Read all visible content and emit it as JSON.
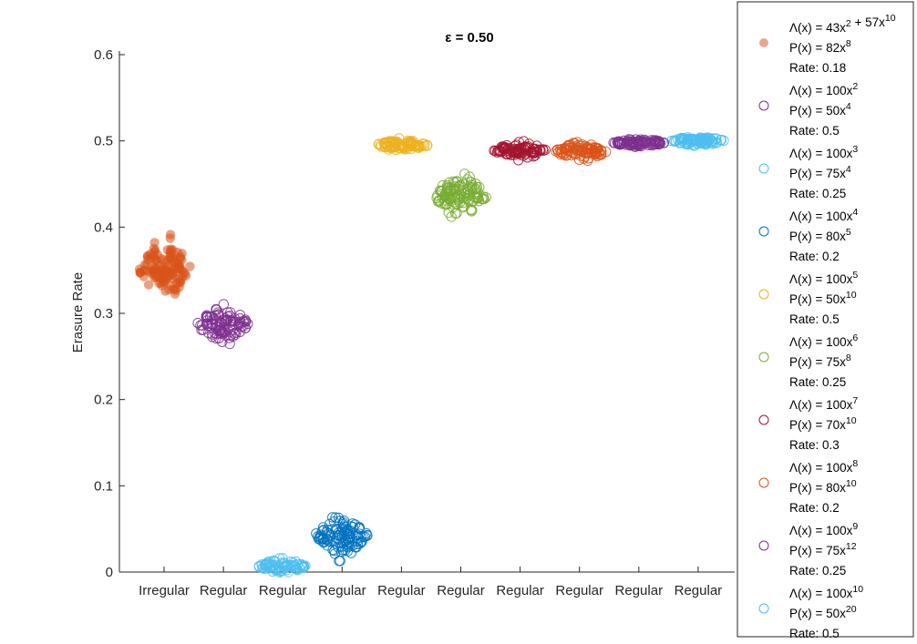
{
  "chart_data": {
    "type": "scatter",
    "title": "ε = 0.50",
    "xlabel": "",
    "ylabel": "Erasure Rate",
    "ylim": [
      0,
      0.6
    ],
    "yticks": [
      0,
      0.1,
      0.2,
      0.3,
      0.4,
      0.5,
      0.6
    ],
    "categories": [
      "Irregular",
      "Regular",
      "Regular",
      "Regular",
      "Regular",
      "Regular",
      "Regular",
      "Regular",
      "Regular",
      "Regular"
    ],
    "grid": false,
    "legend_position": "outside-right",
    "series": [
      {
        "lambda_coef": "43",
        "lambda_exp": "2",
        "lambda_coef2": "57",
        "lambda_exp2": "10",
        "p_coef": "82",
        "p_exp": "8",
        "rate": "0.18",
        "color": "#D95319",
        "legend_color": "#E9A88C",
        "marker": "filled",
        "center": 0.352,
        "spread": 0.045,
        "mark_count": 120
      },
      {
        "lambda_coef": "100",
        "lambda_exp": "2",
        "p_coef": "50",
        "p_exp": "4",
        "rate": "0.5",
        "color": "#7E2F8E",
        "marker": "open",
        "center": 0.287,
        "spread": 0.028,
        "mark_count": 100
      },
      {
        "lambda_coef": "100",
        "lambda_exp": "3",
        "p_coef": "75",
        "p_exp": "4",
        "rate": "0.25",
        "color": "#4DBEEE",
        "marker": "open",
        "center": 0.007,
        "spread": 0.009,
        "mark_count": 80
      },
      {
        "lambda_coef": "100",
        "lambda_exp": "4",
        "p_coef": "80",
        "p_exp": "5",
        "rate": "0.2",
        "color": "#0072BD",
        "marker": "open",
        "center": 0.043,
        "spread": 0.03,
        "mark_count": 110
      },
      {
        "lambda_coef": "100",
        "lambda_exp": "5",
        "p_coef": "50",
        "p_exp": "10",
        "rate": "0.5",
        "color": "#EDB120",
        "marker": "open",
        "center": 0.495,
        "spread": 0.008,
        "mark_count": 90
      },
      {
        "lambda_coef": "100",
        "lambda_exp": "6",
        "p_coef": "75",
        "p_exp": "8",
        "rate": "0.25",
        "color": "#77AC30",
        "marker": "open",
        "center": 0.436,
        "spread": 0.032,
        "mark_count": 110
      },
      {
        "lambda_coef": "100",
        "lambda_exp": "7",
        "p_coef": "70",
        "p_exp": "10",
        "rate": "0.3",
        "color": "#A2142F",
        "marker": "open",
        "center": 0.489,
        "spread": 0.012,
        "mark_count": 90
      },
      {
        "lambda_coef": "100",
        "lambda_exp": "8",
        "p_coef": "80",
        "p_exp": "10",
        "rate": "0.2",
        "color": "#D95319",
        "marker": "open",
        "center": 0.487,
        "spread": 0.013,
        "mark_count": 90
      },
      {
        "lambda_coef": "100",
        "lambda_exp": "9",
        "p_coef": "75",
        "p_exp": "12",
        "rate": "0.25",
        "color": "#7E2F8E",
        "marker": "open",
        "center": 0.498,
        "spread": 0.007,
        "mark_count": 90
      },
      {
        "lambda_coef": "100",
        "lambda_exp": "10",
        "p_coef": "50",
        "p_exp": "20",
        "rate": "0.5",
        "color": "#4DBEEE",
        "marker": "open",
        "center": 0.5,
        "spread": 0.007,
        "mark_count": 90
      }
    ],
    "legend_text": {
      "lambda_prefix": "Λ(x) = ",
      "p_prefix": "P(x) = ",
      "rate_prefix": "Rate: ",
      "var": "x",
      "plus": " + "
    }
  }
}
